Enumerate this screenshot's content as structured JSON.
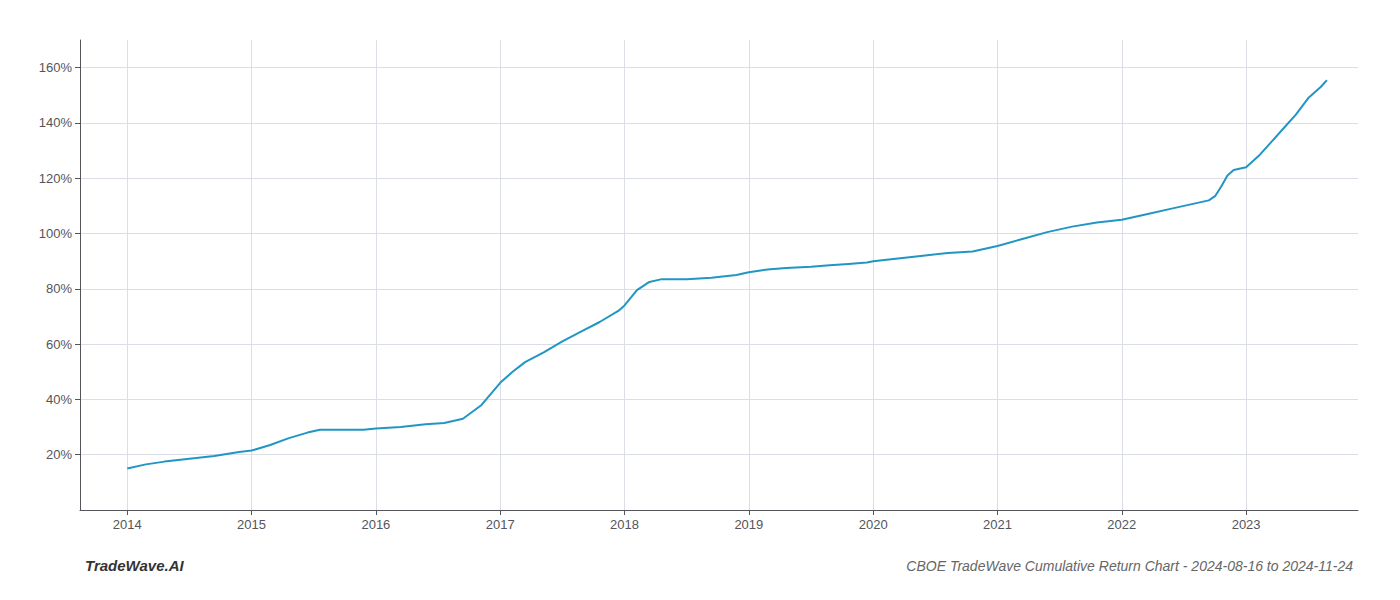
{
  "chart_data": {
    "type": "line",
    "title": "CBOE TradeWave Cumulative Return Chart - 2024-08-16 to 2024-11-24",
    "annotations": [
      "TradeWave.AI"
    ],
    "color": "#2196c4",
    "grid": true,
    "x": [
      2014.0,
      2014.15,
      2014.3,
      2014.5,
      2014.7,
      2014.9,
      2015.0,
      2015.15,
      2015.3,
      2015.45,
      2015.55,
      2015.7,
      2015.9,
      2016.0,
      2016.2,
      2016.4,
      2016.55,
      2016.7,
      2016.85,
      2017.0,
      2017.1,
      2017.2,
      2017.35,
      2017.5,
      2017.65,
      2017.8,
      2017.95,
      2018.0,
      2018.1,
      2018.2,
      2018.3,
      2018.5,
      2018.7,
      2018.9,
      2019.0,
      2019.15,
      2019.3,
      2019.5,
      2019.65,
      2019.8,
      2019.95,
      2020.0,
      2020.2,
      2020.4,
      2020.6,
      2020.8,
      2021.0,
      2021.2,
      2021.4,
      2021.6,
      2021.8,
      2022.0,
      2022.2,
      2022.4,
      2022.6,
      2022.7,
      2022.75,
      2022.8,
      2022.85,
      2022.9,
      2023.0,
      2023.1,
      2023.2,
      2023.3,
      2023.4,
      2023.5,
      2023.6,
      2023.65
    ],
    "values": [
      15.0,
      16.5,
      17.5,
      18.5,
      19.5,
      21.0,
      21.5,
      23.5,
      26.0,
      28.0,
      29.0,
      29.0,
      29.0,
      29.5,
      30.0,
      31.0,
      31.5,
      33.0,
      38.0,
      46.0,
      50.0,
      53.5,
      57.0,
      61.0,
      64.5,
      68.0,
      72.0,
      74.0,
      79.5,
      82.5,
      83.5,
      83.5,
      84.0,
      85.0,
      86.0,
      87.0,
      87.5,
      88.0,
      88.5,
      89.0,
      89.5,
      90.0,
      91.0,
      92.0,
      93.0,
      93.5,
      95.5,
      98.0,
      100.5,
      102.5,
      104.0,
      105.0,
      107.0,
      109.0,
      111.0,
      112.0,
      113.5,
      117.0,
      121.0,
      123.0,
      124.0,
      128.0,
      133.0,
      138.0,
      143.0,
      149.0,
      153.0,
      155.5
    ],
    "xlim": [
      2013.62,
      2023.9
    ],
    "xticks": [
      2014,
      2015,
      2016,
      2017,
      2018,
      2019,
      2020,
      2021,
      2022,
      2023
    ],
    "ylim": [
      0,
      170
    ],
    "yticks": [
      {
        "value": 20,
        "label": "20%"
      },
      {
        "value": 40,
        "label": "40%"
      },
      {
        "value": 60,
        "label": "60%"
      },
      {
        "value": 80,
        "label": "80%"
      },
      {
        "value": 100,
        "label": "100%"
      },
      {
        "value": 120,
        "label": "120%"
      },
      {
        "value": 140,
        "label": "140%"
      },
      {
        "value": 160,
        "label": "160%"
      }
    ]
  }
}
